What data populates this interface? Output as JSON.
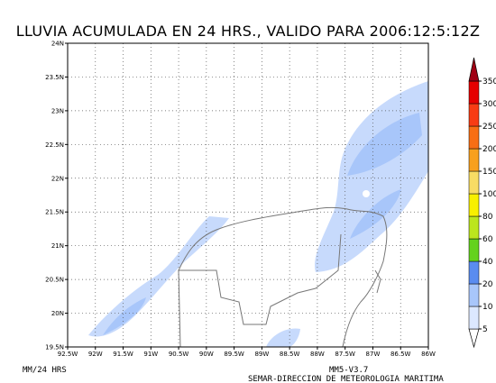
{
  "header": {
    "title": "LLUVIA ACUMULADA EN 24 HRS., VALIDO PARA 2006:12:5:12Z"
  },
  "map": {
    "lon_labels": [
      "92.5W",
      "92W",
      "91.5W",
      "91W",
      "90.5W",
      "90W",
      "89.5W",
      "89W",
      "88.5W",
      "88W",
      "87.5W",
      "87W",
      "86.5W",
      "86W"
    ],
    "lat_labels": [
      "19.5N",
      "20N",
      "20.5N",
      "21N",
      "21.5N",
      "22N",
      "22.5N",
      "23N",
      "23.5N",
      "24N"
    ]
  },
  "colorbar": {
    "levels": [
      5,
      10,
      20,
      40,
      60,
      80,
      100,
      150,
      200,
      250,
      300,
      350
    ],
    "colors": [
      "#ffffff",
      "#dce8ff",
      "#a8c6fa",
      "#5a8cf0",
      "#64d21e",
      "#bce61e",
      "#f8f000",
      "#f8dc64",
      "#f8a01e",
      "#f86e14",
      "#f83c14",
      "#e60000",
      "#a00014"
    ]
  },
  "footer": {
    "left": "MM/24 HRS",
    "right_top": "MM5-V3.7",
    "right_bottom": "SEMAR-DIRECCION DE METEOROLOGIA MARITIMA"
  }
}
